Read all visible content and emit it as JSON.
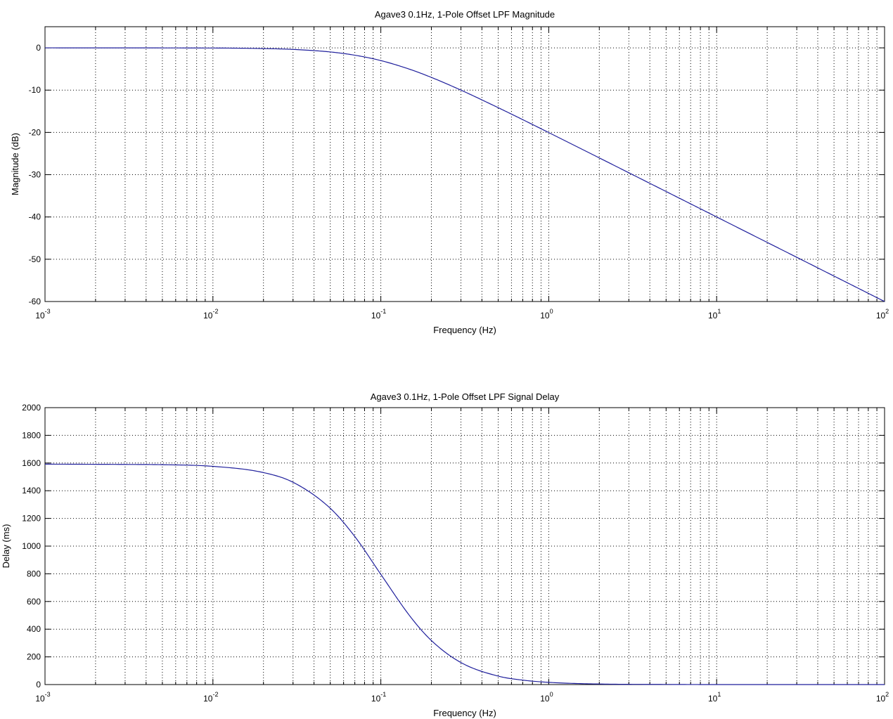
{
  "chart_data": [
    {
      "type": "line",
      "title": "Agave3  0.1Hz, 1-Pole Offset LPF Magnitude",
      "xlabel": "Frequency (Hz)",
      "ylabel": "Magnitude (dB)",
      "xscale": "log",
      "xlim": [
        0.001,
        100
      ],
      "ylim": [
        -60,
        5
      ],
      "yticks": [
        0,
        -10,
        -20,
        -30,
        -40,
        -50,
        -60
      ],
      "xtick_labels": [
        {
          "base": "10",
          "exp": "-3"
        },
        {
          "base": "10",
          "exp": "-2"
        },
        {
          "base": "10",
          "exp": "-1"
        },
        {
          "base": "10",
          "exp": "0"
        },
        {
          "base": "10",
          "exp": "1"
        },
        {
          "base": "10",
          "exp": "2"
        }
      ],
      "grid": true,
      "series_color": "#1f1f9c",
      "x": [
        0.001,
        0.01,
        0.02,
        0.03,
        0.05,
        0.07,
        0.1,
        0.15,
        0.2,
        0.3,
        0.5,
        0.7,
        1,
        2,
        3,
        5,
        7,
        10,
        20,
        30,
        50,
        70,
        100
      ],
      "y": [
        0,
        -0.04,
        -0.17,
        -0.37,
        -0.97,
        -1.74,
        -3.01,
        -5.12,
        -6.99,
        -10.0,
        -14.15,
        -16.98,
        -20.04,
        -26.03,
        -29.55,
        -33.98,
        -36.9,
        -40.0,
        -46.02,
        -49.54,
        -53.98,
        -56.9,
        -60.0
      ]
    },
    {
      "type": "line",
      "title": "Agave3  0.1Hz, 1-Pole Offset LPF Signal Delay",
      "xlabel": "Frequency (Hz)",
      "ylabel": "Delay (ms)",
      "xscale": "log",
      "xlim": [
        0.001,
        100
      ],
      "ylim": [
        0,
        2000
      ],
      "yticks": [
        0,
        200,
        400,
        600,
        800,
        1000,
        1200,
        1400,
        1600,
        1800,
        2000
      ],
      "xtick_labels": [
        {
          "base": "10",
          "exp": "-3"
        },
        {
          "base": "10",
          "exp": "-2"
        },
        {
          "base": "10",
          "exp": "-1"
        },
        {
          "base": "10",
          "exp": "0"
        },
        {
          "base": "10",
          "exp": "1"
        },
        {
          "base": "10",
          "exp": "2"
        }
      ],
      "grid": true,
      "series_color": "#1f1f9c",
      "x": [
        0.001,
        0.003,
        0.005,
        0.01,
        0.02,
        0.03,
        0.05,
        0.07,
        0.1,
        0.15,
        0.2,
        0.3,
        0.5,
        0.7,
        1,
        2,
        5,
        10,
        100
      ],
      "y": [
        1592,
        1590,
        1588,
        1576,
        1531,
        1461,
        1273,
        1069,
        796,
        490,
        318,
        159,
        61,
        32,
        16,
        4,
        1,
        0,
        0
      ]
    }
  ]
}
